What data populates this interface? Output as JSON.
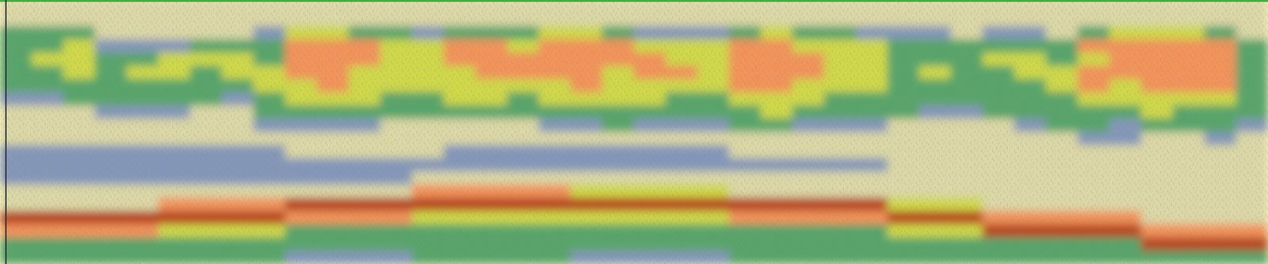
{
  "chart_data": {
    "type": "heatmap",
    "tick_labels": false,
    "cells": [
      [
        1,
        1,
        1,
        1,
        1,
        1,
        1,
        1,
        1,
        1,
        1,
        1,
        1,
        1,
        1,
        1,
        1,
        1,
        1,
        1,
        1,
        1,
        1,
        1,
        1,
        1,
        1,
        1,
        1,
        1,
        1,
        1,
        1,
        1,
        1,
        1,
        1,
        1,
        1,
        1
      ],
      [
        1,
        1,
        1,
        1,
        1,
        1,
        1,
        1,
        1,
        1,
        1,
        1,
        1,
        1,
        1,
        1,
        1,
        1,
        1,
        1,
        1,
        1,
        1,
        1,
        1,
        1,
        1,
        1,
        1,
        1,
        1,
        1,
        1,
        1,
        1,
        1,
        1,
        1,
        1,
        1
      ],
      [
        3,
        3,
        3,
        1,
        1,
        1,
        1,
        1,
        2,
        4,
        4,
        3,
        3,
        2,
        3,
        3,
        3,
        4,
        4,
        3,
        2,
        2,
        2,
        3,
        4,
        3,
        3,
        2,
        2,
        2,
        1,
        2,
        2,
        1,
        3,
        4,
        4,
        4,
        3,
        1
      ],
      [
        3,
        3,
        4,
        2,
        2,
        2,
        3,
        3,
        3,
        5,
        5,
        5,
        4,
        4,
        5,
        5,
        4,
        5,
        5,
        5,
        4,
        4,
        4,
        5,
        5,
        4,
        4,
        4,
        3,
        3,
        3,
        3,
        3,
        3,
        5,
        5,
        5,
        5,
        5,
        3
      ],
      [
        3,
        4,
        4,
        3,
        3,
        4,
        4,
        4,
        3,
        5,
        5,
        5,
        4,
        4,
        5,
        5,
        5,
        5,
        5,
        5,
        5,
        4,
        4,
        5,
        5,
        5,
        4,
        4,
        3,
        3,
        3,
        4,
        4,
        3,
        4,
        5,
        5,
        5,
        5,
        3
      ],
      [
        3,
        3,
        4,
        3,
        4,
        4,
        3,
        4,
        4,
        5,
        5,
        4,
        4,
        4,
        4,
        5,
        5,
        5,
        5,
        4,
        5,
        5,
        4,
        5,
        5,
        5,
        4,
        4,
        3,
        4,
        3,
        3,
        4,
        4,
        5,
        5,
        5,
        5,
        5,
        3
      ],
      [
        3,
        3,
        3,
        3,
        3,
        3,
        3,
        3,
        4,
        4,
        5,
        4,
        4,
        4,
        4,
        4,
        4,
        4,
        5,
        4,
        4,
        4,
        4,
        5,
        5,
        4,
        4,
        4,
        3,
        3,
        3,
        3,
        3,
        4,
        5,
        4,
        5,
        5,
        5,
        3
      ],
      [
        2,
        2,
        3,
        3,
        3,
        3,
        3,
        2,
        3,
        4,
        4,
        4,
        3,
        3,
        4,
        4,
        3,
        4,
        4,
        4,
        4,
        3,
        3,
        4,
        4,
        4,
        3,
        3,
        3,
        3,
        3,
        3,
        3,
        3,
        4,
        4,
        4,
        4,
        4,
        3
      ],
      [
        1,
        1,
        1,
        2,
        2,
        2,
        1,
        1,
        3,
        3,
        3,
        3,
        3,
        3,
        3,
        3,
        3,
        3,
        3,
        3,
        3,
        3,
        3,
        3,
        4,
        3,
        3,
        3,
        3,
        2,
        2,
        3,
        3,
        3,
        3,
        3,
        4,
        3,
        3,
        3
      ],
      [
        1,
        1,
        1,
        1,
        1,
        1,
        1,
        1,
        2,
        2,
        2,
        2,
        1,
        1,
        1,
        1,
        1,
        2,
        2,
        3,
        2,
        2,
        2,
        3,
        3,
        2,
        2,
        2,
        1,
        1,
        1,
        1,
        2,
        3,
        3,
        2,
        3,
        3,
        3,
        2
      ],
      [
        1,
        1,
        1,
        1,
        1,
        1,
        1,
        1,
        1,
        1,
        1,
        1,
        1,
        1,
        1,
        1,
        1,
        1,
        1,
        1,
        1,
        1,
        1,
        1,
        1,
        1,
        1,
        1,
        1,
        1,
        1,
        1,
        1,
        1,
        2,
        2,
        1,
        1,
        2,
        1
      ],
      [
        2,
        2,
        2,
        2,
        2,
        2,
        2,
        2,
        2,
        1,
        1,
        1,
        1,
        1,
        2,
        2,
        2,
        2,
        2,
        2,
        2,
        2,
        2,
        1,
        1,
        1,
        1,
        1,
        1,
        1,
        1,
        1,
        1,
        1,
        1,
        1,
        1,
        1,
        1,
        1
      ],
      [
        2,
        2,
        2,
        2,
        2,
        2,
        2,
        2,
        2,
        2,
        2,
        2,
        2,
        2,
        2,
        2,
        2,
        2,
        2,
        2,
        2,
        2,
        2,
        2,
        2,
        2,
        2,
        2,
        1,
        1,
        1,
        1,
        1,
        1,
        1,
        1,
        1,
        1,
        1,
        1
      ],
      [
        2,
        2,
        2,
        2,
        2,
        2,
        2,
        2,
        2,
        2,
        2,
        2,
        2,
        1,
        1,
        1,
        1,
        1,
        1,
        1,
        1,
        1,
        1,
        1,
        1,
        1,
        1,
        1,
        1,
        1,
        1,
        1,
        1,
        1,
        1,
        1,
        1,
        1,
        1,
        1
      ],
      [
        1,
        1,
        1,
        1,
        1,
        1,
        1,
        1,
        1,
        1,
        1,
        1,
        1,
        5,
        5,
        5,
        5,
        5,
        4,
        4,
        4,
        4,
        4,
        1,
        1,
        1,
        1,
        1,
        1,
        1,
        1,
        1,
        1,
        1,
        1,
        1,
        1,
        1,
        1,
        1
      ],
      [
        1,
        1,
        1,
        1,
        1,
        5,
        5,
        5,
        5,
        6,
        6,
        6,
        6,
        6,
        6,
        6,
        6,
        6,
        6,
        6,
        6,
        6,
        6,
        6,
        6,
        6,
        6,
        6,
        4,
        4,
        4,
        1,
        1,
        1,
        1,
        1,
        1,
        1,
        1,
        1
      ],
      [
        6,
        6,
        6,
        6,
        6,
        6,
        6,
        6,
        6,
        5,
        5,
        5,
        5,
        4,
        4,
        4,
        4,
        4,
        4,
        4,
        4,
        4,
        4,
        5,
        5,
        5,
        5,
        5,
        6,
        6,
        6,
        5,
        5,
        5,
        5,
        5,
        1,
        1,
        1,
        1
      ],
      [
        5,
        5,
        5,
        5,
        5,
        4,
        4,
        4,
        4,
        3,
        3,
        3,
        3,
        3,
        3,
        3,
        3,
        3,
        3,
        3,
        3,
        3,
        3,
        3,
        3,
        3,
        3,
        3,
        4,
        4,
        4,
        6,
        6,
        6,
        6,
        6,
        5,
        5,
        5,
        5
      ],
      [
        3,
        3,
        3,
        3,
        3,
        3,
        3,
        3,
        3,
        3,
        3,
        3,
        3,
        3,
        3,
        3,
        3,
        3,
        3,
        3,
        3,
        3,
        3,
        3,
        3,
        3,
        3,
        3,
        3,
        3,
        3,
        3,
        3,
        3,
        3,
        3,
        6,
        6,
        6,
        6
      ],
      [
        3,
        3,
        3,
        3,
        3,
        3,
        3,
        3,
        3,
        2,
        2,
        2,
        2,
        3,
        3,
        3,
        3,
        3,
        2,
        2,
        2,
        2,
        2,
        3,
        3,
        3,
        3,
        3,
        3,
        3,
        3,
        3,
        3,
        3,
        3,
        3,
        3,
        3,
        3,
        3
      ]
    ]
  }
}
